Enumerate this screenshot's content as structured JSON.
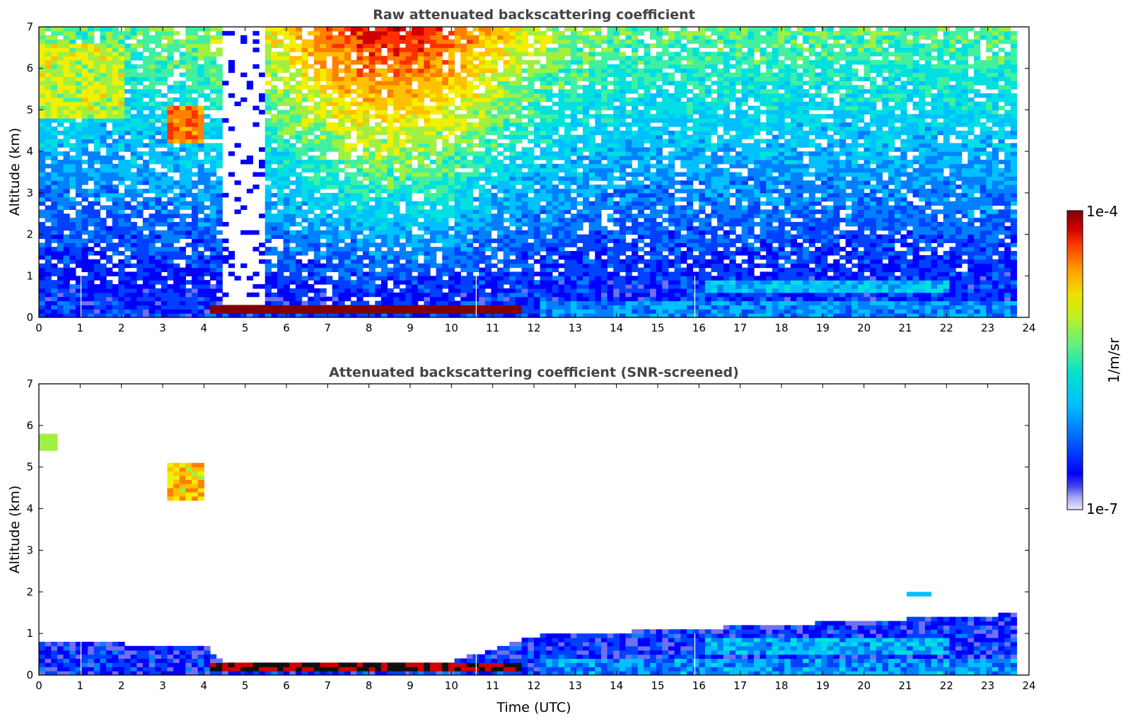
{
  "chart_data": [
    {
      "type": "heatmap",
      "title": "Raw attenuated backscattering coefficient",
      "xlabel": "",
      "ylabel": "Altitude (km)",
      "xlim": [
        0,
        24
      ],
      "ylim": [
        0,
        7
      ],
      "xticks": [
        "0",
        "1",
        "2",
        "3",
        "4",
        "5",
        "6",
        "7",
        "8",
        "9",
        "10",
        "11",
        "12",
        "13",
        "14",
        "15",
        "16",
        "17",
        "18",
        "19",
        "20",
        "21",
        "22",
        "23",
        "24"
      ],
      "yticks": [
        "0",
        "1",
        "2",
        "3",
        "4",
        "5",
        "6",
        "7"
      ],
      "data_end_time": 23.7,
      "features": [
        {
          "name": "boundary layer",
          "t_start": 0,
          "t_end": 23.7,
          "top_km": [
            0.7,
            0.55,
            0.5,
            0.15,
            0.2,
            0.3,
            0.6,
            0.8,
            0.9,
            1.0
          ]
        },
        {
          "name": "dense low cloud",
          "t_start": 4.0,
          "t_end": 11.6,
          "base_km": 0.05,
          "top_km": 0.25
        },
        {
          "name": "mid-level cloud",
          "t_start": 3.0,
          "t_end": 3.9,
          "base_km": 4.2,
          "top_km": 5.0
        },
        {
          "name": "elevated aerosol",
          "t_start": 0,
          "t_end": 2.0,
          "base_km": 4.8,
          "top_km": 6.5
        }
      ]
    },
    {
      "type": "heatmap",
      "title": "Attenuated backscattering coefficient (SNR-screened)",
      "xlabel": "Time (UTC)",
      "ylabel": "Altitude (km)",
      "xlim": [
        0,
        24
      ],
      "ylim": [
        0,
        7
      ],
      "xticks": [
        "0",
        "1",
        "2",
        "3",
        "4",
        "5",
        "6",
        "7",
        "8",
        "9",
        "10",
        "11",
        "12",
        "13",
        "14",
        "15",
        "16",
        "17",
        "18",
        "19",
        "20",
        "21",
        "22",
        "23",
        "24"
      ],
      "yticks": [
        "0",
        "1",
        "2",
        "3",
        "4",
        "5",
        "6",
        "7"
      ],
      "data_end_time": 23.7
    }
  ],
  "colorbar": {
    "max_label": "1e-4",
    "min_label": "1e-7",
    "units": "1/m/sr",
    "colormap": [
      "#e8e8f8",
      "#b8b8f0",
      "#7070f0",
      "#0000ff",
      "#0040ff",
      "#0080ff",
      "#00c0ff",
      "#00e0e0",
      "#40f0a0",
      "#a0f040",
      "#f0f000",
      "#ffc000",
      "#ff8000",
      "#ff3000",
      "#d00000",
      "#800000"
    ]
  }
}
